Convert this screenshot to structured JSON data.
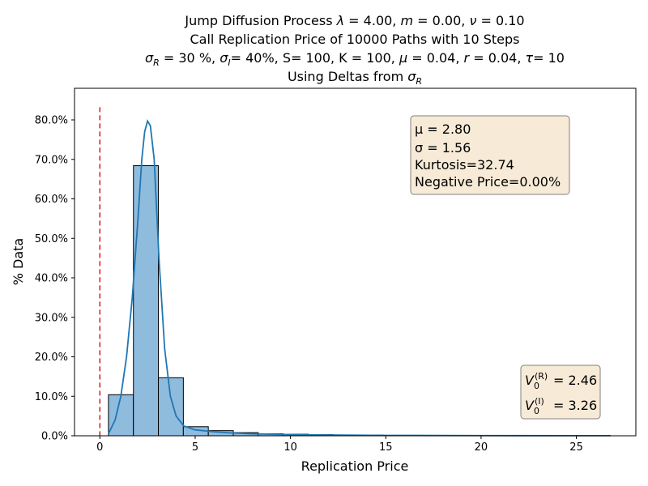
{
  "chart_data": {
    "type": "bar",
    "title_lines": [
      "Jump Diffusion Process  λ =  4.00, m =  0.00, ν =  0.10",
      "Call Replication Price of 10000 Paths with 10 Steps",
      "σR = 30 %, σI= 40%, S= 100, K = 100, μ = 0.04, r = 0.04, τ= 10",
      "Using Deltas from σR"
    ],
    "xlabel": "Replication Price",
    "ylabel": "% Data",
    "xlim": [
      -1.33,
      28.12
    ],
    "ylim": [
      0,
      0.88
    ],
    "x_ticks": [
      0,
      5,
      10,
      15,
      20,
      25
    ],
    "x_tick_labels": [
      "0",
      "5",
      "10",
      "15",
      "20",
      "25"
    ],
    "y_ticks": [
      0,
      0.1,
      0.2,
      0.3,
      0.4,
      0.5,
      0.6,
      0.7,
      0.8
    ],
    "y_tick_labels": [
      "0.0%",
      "10.0%",
      "20.0%",
      "30.0%",
      "40.0%",
      "50.0%",
      "60.0%",
      "70.0%",
      "80.0%"
    ],
    "bin_width": 1.31,
    "bins": [
      {
        "x0": 0.45,
        "value": 0.104
      },
      {
        "x0": 1.76,
        "value": 0.684
      },
      {
        "x0": 3.07,
        "value": 0.147
      },
      {
        "x0": 4.38,
        "value": 0.023
      },
      {
        "x0": 5.69,
        "value": 0.013
      },
      {
        "x0": 7.0,
        "value": 0.008
      },
      {
        "x0": 8.31,
        "value": 0.005
      },
      {
        "x0": 9.62,
        "value": 0.004
      },
      {
        "x0": 10.93,
        "value": 0.003
      },
      {
        "x0": 12.24,
        "value": 0.002
      },
      {
        "x0": 13.55,
        "value": 0.002
      },
      {
        "x0": 14.86,
        "value": 0.001
      },
      {
        "x0": 16.17,
        "value": 0.001
      },
      {
        "x0": 17.48,
        "value": 0.001
      },
      {
        "x0": 18.79,
        "value": 0.001
      },
      {
        "x0": 20.1,
        "value": 0.001
      },
      {
        "x0": 21.41,
        "value": 0.0005
      },
      {
        "x0": 22.72,
        "value": 0.0005
      },
      {
        "x0": 24.03,
        "value": 0.0005
      },
      {
        "x0": 25.34,
        "value": 0.0005
      }
    ],
    "kde": {
      "x": [
        0.45,
        0.8,
        1.1,
        1.4,
        1.7,
        2.0,
        2.2,
        2.35,
        2.5,
        2.65,
        2.85,
        3.1,
        3.4,
        3.7,
        4.0,
        4.4,
        5.0,
        6.0,
        7.0,
        8.0,
        9.0,
        10.0,
        12.0,
        15.0,
        20.0,
        26.8
      ],
      "y": [
        0.005,
        0.04,
        0.1,
        0.2,
        0.35,
        0.55,
        0.7,
        0.77,
        0.797,
        0.785,
        0.7,
        0.45,
        0.22,
        0.1,
        0.05,
        0.025,
        0.015,
        0.01,
        0.007,
        0.005,
        0.004,
        0.003,
        0.002,
        0.001,
        0.0005,
        0.0002
      ]
    },
    "vline_x": 0,
    "vline_top": 0.832,
    "stats_box": {
      "mu": "μ = 2.80",
      "sigma": "σ = 1.56",
      "kurtosis": "Kurtosis=32.74",
      "negative": "Negative Price=0.00%"
    },
    "price_box": {
      "line1_value": "= 2.46",
      "line2_value": "= 3.26"
    },
    "colors": {
      "bar_fill": "#8fbbdc",
      "bar_edge": "#000000",
      "kde_line": "#1f77b4",
      "vline": "#d62728",
      "box_fill": "#f7ead7",
      "box_edge": "#808080"
    }
  }
}
